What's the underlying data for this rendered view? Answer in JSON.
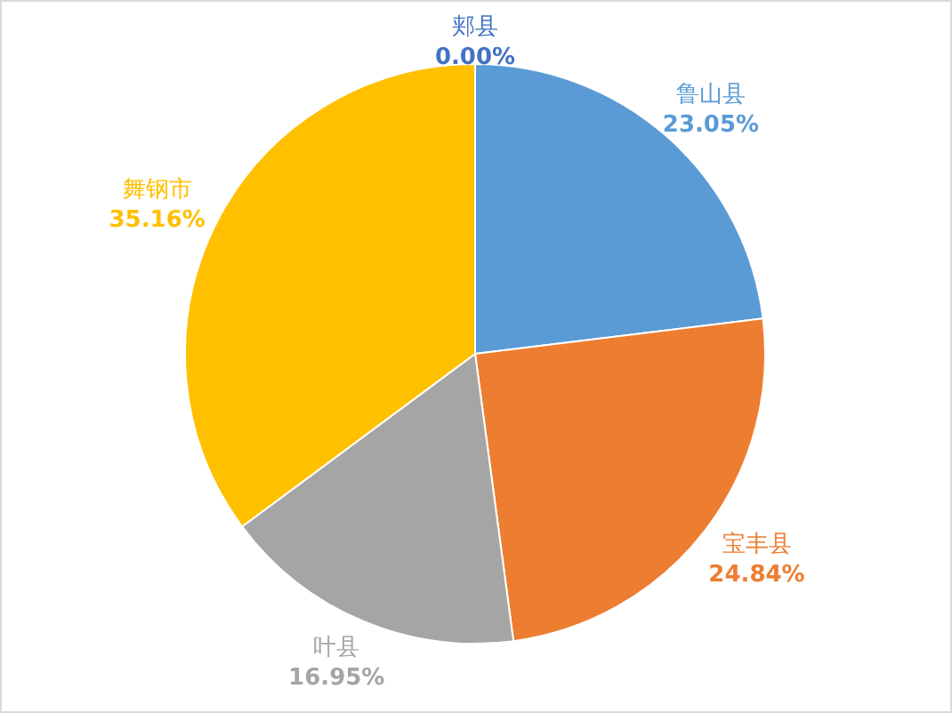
{
  "chart_data": {
    "type": "pie",
    "categories": [
      "郏县",
      "鲁山县",
      "宝丰县",
      "叶县",
      "舞钢市"
    ],
    "values": [
      0.0,
      23.05,
      24.84,
      16.95,
      35.16
    ],
    "colors": [
      "#4472c4",
      "#5b9bd5",
      "#ed7d31",
      "#a5a5a5",
      "#ffc000"
    ],
    "value_labels": [
      "0.00%",
      "23.05%",
      "24.84%",
      "16.95%",
      "35.16%"
    ]
  }
}
